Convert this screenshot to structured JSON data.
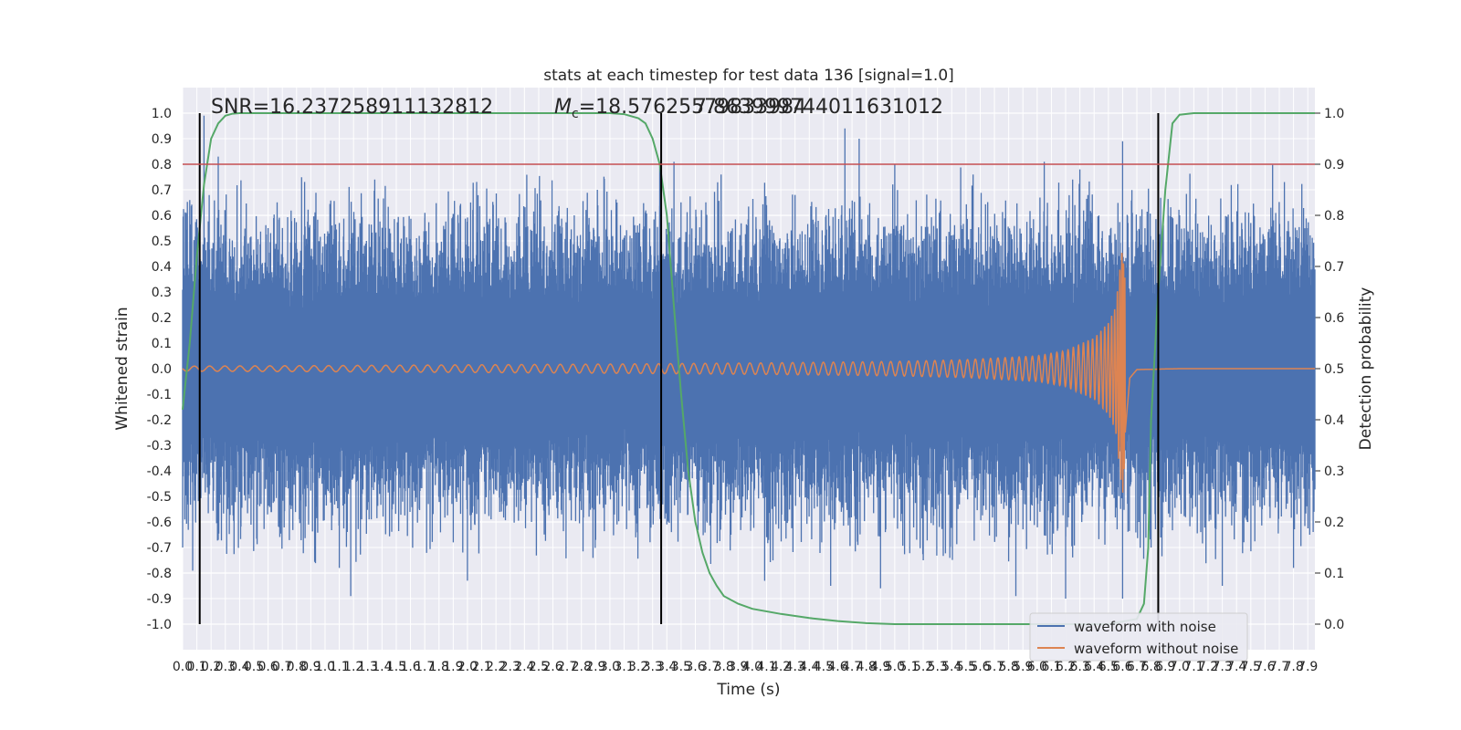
{
  "chart_data": {
    "type": "line",
    "title": "stats at each timestep for test data 136 [signal=1.0]",
    "xlabel": "Time (s)",
    "ylabel": "Whitened strain",
    "y2label": "Detection probability",
    "xlim": [
      0,
      7.95
    ],
    "ylim": [
      -1.1,
      1.1
    ],
    "y2lim": [
      -0.05,
      1.05
    ],
    "x_ticks": [
      "0.0",
      "0.1",
      "0.2",
      "0.3",
      "0.4",
      "0.5",
      "0.6",
      "0.7",
      "0.8",
      "0.9",
      "1.0",
      "1.1",
      "1.2",
      "1.3",
      "1.4",
      "1.5",
      "1.6",
      "1.7",
      "1.8",
      "1.9",
      "2.0",
      "2.1",
      "2.2",
      "2.3",
      "2.4",
      "2.5",
      "2.6",
      "2.7",
      "2.8",
      "2.9",
      "3.0",
      "3.1",
      "3.2",
      "3.3",
      "3.4",
      "3.5",
      "3.6",
      "3.7",
      "3.8",
      "3.9",
      "4.0",
      "4.1",
      "4.2",
      "4.3",
      "4.4",
      "4.5",
      "4.6",
      "4.7",
      "4.8",
      "4.9",
      "5.0",
      "5.1",
      "5.2",
      "5.3",
      "5.4",
      "5.5",
      "5.6",
      "5.7",
      "5.8",
      "5.9",
      "6.0",
      "6.1",
      "6.2",
      "6.3",
      "6.4",
      "6.5",
      "6.6",
      "6.7",
      "6.8",
      "6.9",
      "7.0",
      "7.1",
      "7.2",
      "7.3",
      "7.4",
      "7.5",
      "7.6",
      "7.7",
      "7.8",
      "7.9"
    ],
    "y_ticks": [
      "-1.0",
      "-0.9",
      "-0.8",
      "-0.7",
      "-0.6",
      "-0.5",
      "-0.4",
      "-0.3",
      "-0.2",
      "-0.1",
      "0.0",
      "0.1",
      "0.2",
      "0.3",
      "0.4",
      "0.5",
      "0.6",
      "0.7",
      "0.8",
      "0.9",
      "1.0"
    ],
    "y2_ticks": [
      "0.0",
      "0.1",
      "0.2",
      "0.3",
      "0.4",
      "0.5",
      "0.6",
      "0.7",
      "0.8",
      "0.9",
      "1.0"
    ],
    "annotations": {
      "snr": "SNR=16.237258911132812",
      "mc_prefix": "M",
      "mc_sub": "c",
      "mc_value": "=18.57625579833984",
      "overlap_value": "7.863999744011631012"
    },
    "legend": {
      "placement": "lower-right",
      "entries": [
        "waveform with noise",
        "waveform without noise"
      ]
    },
    "threshold": 0.9,
    "event_markers": [
      0.12,
      3.36,
      6.85
    ],
    "series": [
      {
        "name": "waveform with noise",
        "color": "#4c72b0",
        "note_envelope": "noise spikes up to ~±1.0 across full range",
        "peaks": [
          [
            0.05,
            0.66
          ],
          [
            0.15,
            0.99
          ],
          [
            0.25,
            0.83
          ],
          [
            0.6,
            0.55
          ],
          [
            1.1,
            0.57
          ],
          [
            1.7,
            0.59
          ],
          [
            2.2,
            0.55
          ],
          [
            2.75,
            0.6
          ],
          [
            3.05,
            0.65
          ],
          [
            3.35,
            0.79
          ],
          [
            3.45,
            0.81
          ],
          [
            4.1,
            0.64
          ],
          [
            4.3,
            0.68
          ],
          [
            4.65,
            0.94
          ],
          [
            4.75,
            0.9
          ],
          [
            5.0,
            0.8
          ],
          [
            5.55,
            0.76
          ],
          [
            6.05,
            0.81
          ],
          [
            6.3,
            0.78
          ],
          [
            6.6,
            0.89
          ],
          [
            6.7,
            0.54
          ],
          [
            7.0,
            0.6
          ],
          [
            7.5,
            0.57
          ],
          [
            7.9,
            0.55
          ]
        ],
        "troughs": [
          [
            0.0,
            -0.7
          ],
          [
            0.12,
            -0.83
          ],
          [
            0.25,
            -0.67
          ],
          [
            1.1,
            -0.78
          ],
          [
            1.18,
            -0.89
          ],
          [
            1.9,
            -0.68
          ],
          [
            2.0,
            -0.83
          ],
          [
            2.45,
            -0.6
          ],
          [
            2.9,
            -0.67
          ],
          [
            3.4,
            -0.61
          ],
          [
            3.85,
            -0.65
          ],
          [
            4.1,
            -0.66
          ],
          [
            4.55,
            -0.85
          ],
          [
            4.9,
            -0.86
          ],
          [
            5.2,
            -0.75
          ],
          [
            5.85,
            -0.89
          ],
          [
            6.2,
            -0.9
          ],
          [
            6.6,
            -0.9
          ],
          [
            6.8,
            -0.7
          ],
          [
            7.3,
            -0.85
          ],
          [
            7.8,
            -0.78
          ]
        ]
      },
      {
        "name": "waveform without noise",
        "color": "#dd8452",
        "note_shape": "inspiral chirp, amplitude grows until merger then decays to zero",
        "x": [
          0.0,
          1.0,
          2.0,
          3.0,
          4.0,
          5.0,
          5.5,
          6.0,
          6.2,
          6.4,
          6.5,
          6.55,
          6.6,
          6.65,
          6.7,
          7.0,
          7.95
        ],
        "amplitude": [
          0.01,
          0.012,
          0.015,
          0.018,
          0.022,
          0.028,
          0.035,
          0.05,
          0.07,
          0.12,
          0.18,
          0.24,
          0.5,
          0.05,
          0.005,
          0.0,
          0.0
        ]
      },
      {
        "name": "detection probability",
        "color": "#55a868",
        "axis": "right",
        "x": [
          0.0,
          0.05,
          0.1,
          0.15,
          0.2,
          0.25,
          0.3,
          0.35,
          0.4,
          0.45,
          3.0,
          3.1,
          3.2,
          3.25,
          3.3,
          3.35,
          3.4,
          3.45,
          3.5,
          3.55,
          3.6,
          3.65,
          3.7,
          3.75,
          3.8,
          3.9,
          4.0,
          4.2,
          4.4,
          4.6,
          4.8,
          5.0,
          5.5,
          6.0,
          6.5,
          6.7,
          6.75,
          6.78,
          6.8,
          6.85,
          6.9,
          6.95,
          7.0,
          7.1,
          7.5,
          7.95
        ],
        "y": [
          0.42,
          0.55,
          0.72,
          0.86,
          0.95,
          0.98,
          0.995,
          0.999,
          1.0,
          1.0,
          1.0,
          0.998,
          0.99,
          0.98,
          0.95,
          0.9,
          0.8,
          0.62,
          0.45,
          0.3,
          0.2,
          0.14,
          0.1,
          0.075,
          0.055,
          0.04,
          0.03,
          0.02,
          0.012,
          0.006,
          0.002,
          0.0,
          0.0,
          0.0,
          0.0,
          0.01,
          0.04,
          0.15,
          0.4,
          0.65,
          0.85,
          0.98,
          0.997,
          1.0,
          1.0,
          1.0
        ]
      }
    ]
  }
}
